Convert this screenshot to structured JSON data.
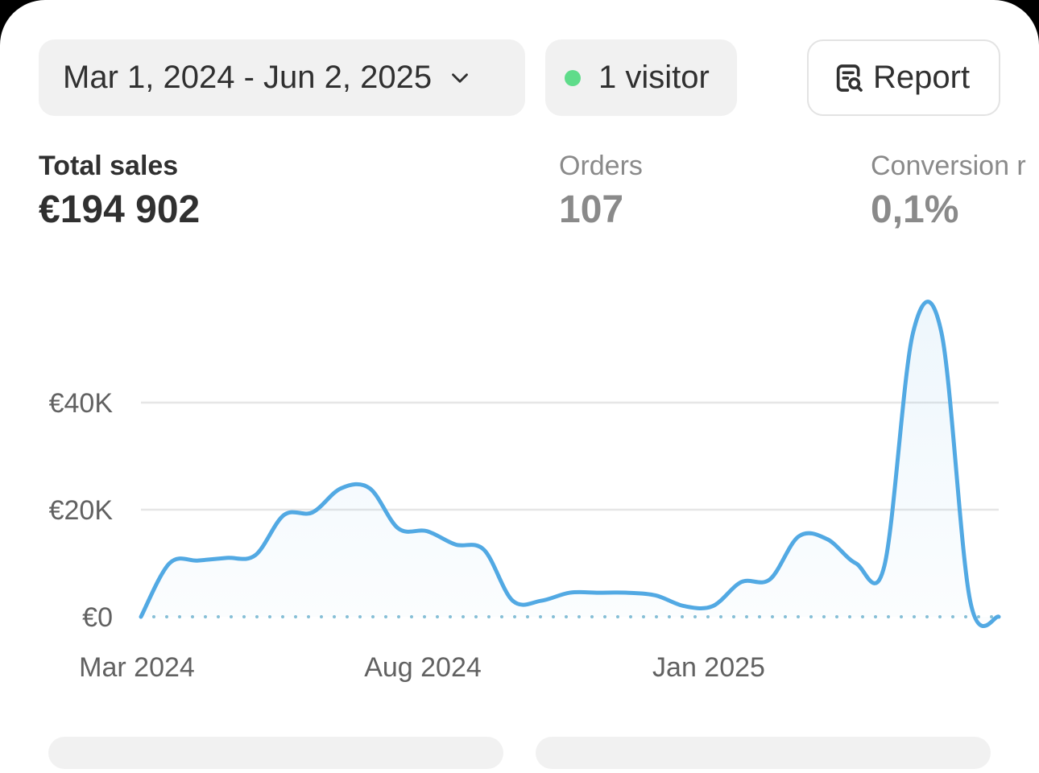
{
  "header": {
    "date_range": "Mar 1, 2024 - Jun 2, 2025",
    "visitors": "1 visitor",
    "report_label": "Report"
  },
  "metrics": {
    "total_sales": {
      "label": "Total sales",
      "value": "€194 902"
    },
    "orders": {
      "label": "Orders",
      "value": "107"
    },
    "conversion": {
      "label": "Conversion r",
      "value": "0,1%"
    }
  },
  "colors": {
    "line": "#52a9e3",
    "visitor_dot": "#5fdc8a",
    "grid": "#e6e6e6"
  },
  "chart_data": {
    "type": "line",
    "x": [
      0,
      0.5,
      1,
      1.5,
      2,
      2.5,
      3,
      3.5,
      4,
      4.5,
      5,
      5.5,
      6,
      6.5,
      7,
      7.5,
      8,
      8.5,
      9,
      9.5,
      10,
      10.5,
      11,
      11.5,
      12,
      12.5,
      13,
      13.5,
      14,
      14.5,
      15
    ],
    "y": [
      0,
      10000,
      10500,
      11000,
      11500,
      19000,
      19500,
      24000,
      24000,
      16500,
      16000,
      13500,
      12500,
      3000,
      3000,
      4500,
      4500,
      4500,
      4000,
      2000,
      2000,
      6500,
      7000,
      15000,
      14500,
      10000,
      9500,
      53000,
      53000,
      3000,
      0
    ],
    "x_ticks": [
      {
        "at": 0,
        "label": "Mar 2024"
      },
      {
        "at": 5,
        "label": "Aug 2024"
      },
      {
        "at": 10,
        "label": "Jan 2025"
      }
    ],
    "y_ticks": [
      {
        "at": 0,
        "label": "€0"
      },
      {
        "at": 20000,
        "label": "€20K"
      },
      {
        "at": 40000,
        "label": "€40K"
      }
    ],
    "baseline_style": "dotted",
    "grid": true
  }
}
